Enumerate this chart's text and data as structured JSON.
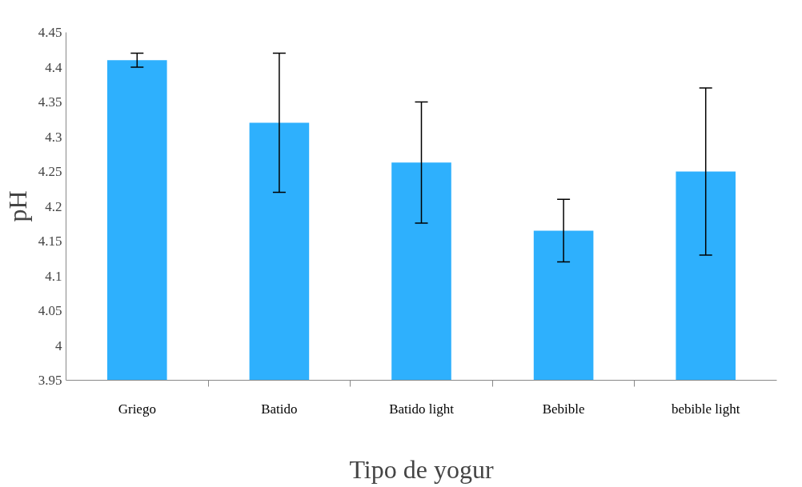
{
  "chart_data": {
    "type": "bar",
    "xlabel": "Tipo de yogur",
    "ylabel": "pH",
    "categories": [
      "Griego",
      "Batido",
      "Batido light",
      "Bebible",
      "bebible light"
    ],
    "values": [
      4.41,
      4.32,
      4.263,
      4.165,
      4.25
    ],
    "errors": [
      0.01,
      0.1,
      0.087,
      0.045,
      0.12
    ],
    "color": "#2eb0fd",
    "ylim": [
      3.95,
      4.45
    ],
    "yticks": [
      3.95,
      4,
      4.05,
      4.1,
      4.15,
      4.2,
      4.25,
      4.3,
      4.35,
      4.4,
      4.45
    ],
    "grid": false
  }
}
